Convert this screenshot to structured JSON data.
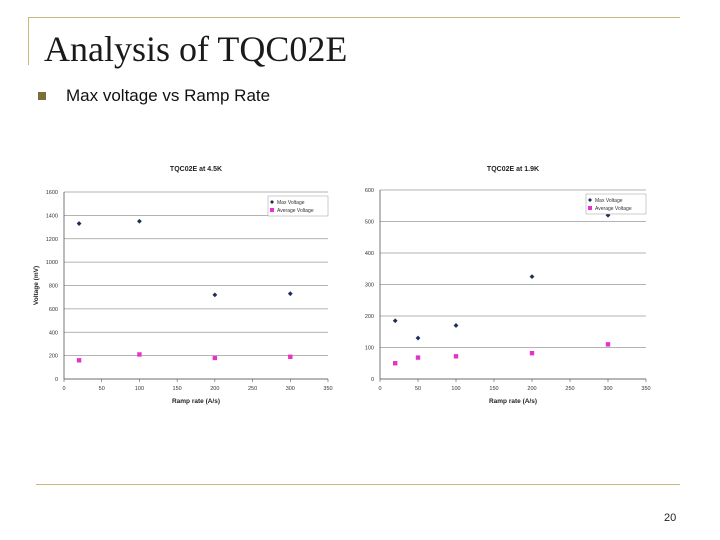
{
  "slide": {
    "title": "Analysis of TQC02E",
    "bullet": "Max voltage vs Ramp Rate",
    "page_number": "20"
  },
  "colors": {
    "frame": "#c8b87a",
    "max_voltage": "#1f2d5a",
    "average_voltage": "#e632c8",
    "gridline": "#9a9a9a",
    "bullet": "#7a6e3a"
  },
  "icons": {
    "bullet": "square-bullet-icon"
  },
  "chart_data": [
    {
      "type": "scatter",
      "title": "TQC02E at 4.5K",
      "xlabel": "Ramp rate (A/s)",
      "ylabel": "Voltage (mV)",
      "xlim": [
        0,
        350
      ],
      "ylim": [
        0,
        1600
      ],
      "xticks": [
        0,
        50,
        100,
        150,
        200,
        250,
        300,
        350
      ],
      "yticks": [
        0,
        200,
        400,
        600,
        800,
        1000,
        1200,
        1400,
        1600
      ],
      "grid": "horizontal",
      "legend_position": "top-right",
      "series": [
        {
          "name": "Max Voltage",
          "marker": "diamond",
          "color": "#1f2d5a",
          "points": [
            [
              20,
              1330
            ],
            [
              100,
              1350
            ],
            [
              200,
              720
            ],
            [
              300,
              730
            ]
          ]
        },
        {
          "name": "Average Voltage",
          "marker": "square",
          "color": "#e632c8",
          "points": [
            [
              20,
              160
            ],
            [
              100,
              210
            ],
            [
              200,
              180
            ],
            [
              300,
              190
            ]
          ]
        }
      ]
    },
    {
      "type": "scatter",
      "title": "TQC02E at 1.9K",
      "xlabel": "Ramp rate (A/s)",
      "ylabel": "",
      "xlim": [
        0,
        350
      ],
      "ylim": [
        0,
        600
      ],
      "xticks": [
        0,
        50,
        100,
        150,
        200,
        250,
        300,
        350
      ],
      "yticks": [
        0,
        100,
        200,
        300,
        400,
        500,
        600
      ],
      "grid": "horizontal",
      "legend_position": "top-right",
      "series": [
        {
          "name": "Max Voltage",
          "marker": "diamond",
          "color": "#1f2d5a",
          "points": [
            [
              20,
              185
            ],
            [
              50,
              130
            ],
            [
              100,
              170
            ],
            [
              200,
              325
            ],
            [
              300,
              520
            ]
          ]
        },
        {
          "name": "Average Voltage",
          "marker": "square",
          "color": "#e632c8",
          "points": [
            [
              20,
              50
            ],
            [
              50,
              68
            ],
            [
              100,
              72
            ],
            [
              200,
              82
            ],
            [
              300,
              110
            ]
          ]
        }
      ]
    }
  ]
}
